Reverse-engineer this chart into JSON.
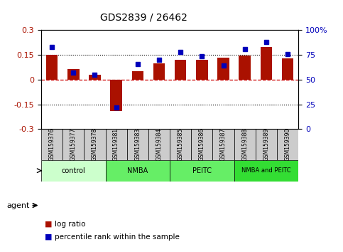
{
  "title": "GDS2839 / 26462",
  "samples": [
    "GSM159376",
    "GSM159377",
    "GSM159378",
    "GSM159381",
    "GSM159383",
    "GSM159384",
    "GSM159385",
    "GSM159386",
    "GSM159387",
    "GSM159388",
    "GSM159389",
    "GSM159390"
  ],
  "log_ratio": [
    0.152,
    0.065,
    0.03,
    -0.19,
    0.05,
    0.1,
    0.12,
    0.12,
    0.135,
    0.148,
    0.2,
    0.128
  ],
  "percentile_rank": [
    83,
    57,
    55,
    22,
    66,
    70,
    78,
    74,
    64,
    81,
    88,
    76
  ],
  "group_labels": [
    "control",
    "NMBA",
    "PEITC",
    "NMBA and PEITC"
  ],
  "group_ranges": [
    [
      0,
      3
    ],
    [
      3,
      6
    ],
    [
      6,
      9
    ],
    [
      9,
      12
    ]
  ],
  "group_colors": [
    "#ccffcc",
    "#66ee66",
    "#66ee66",
    "#33dd33"
  ],
  "ylim_left": [
    -0.3,
    0.3
  ],
  "ylim_right": [
    0,
    100
  ],
  "yticks_left": [
    -0.3,
    -0.15,
    0,
    0.15,
    0.3
  ],
  "yticks_right": [
    0,
    25,
    50,
    75,
    100
  ],
  "bar_color": "#aa1100",
  "dot_color": "#0000bb",
  "hline0_color": "#cc0000",
  "dotline_color": "#000000",
  "sample_box_color": "#cccccc",
  "legend_items": [
    "log ratio",
    "percentile rank within the sample"
  ],
  "legend_colors": [
    "#aa1100",
    "#0000bb"
  ],
  "agent_label": "agent",
  "figsize": [
    4.83,
    3.54
  ],
  "dpi": 100
}
